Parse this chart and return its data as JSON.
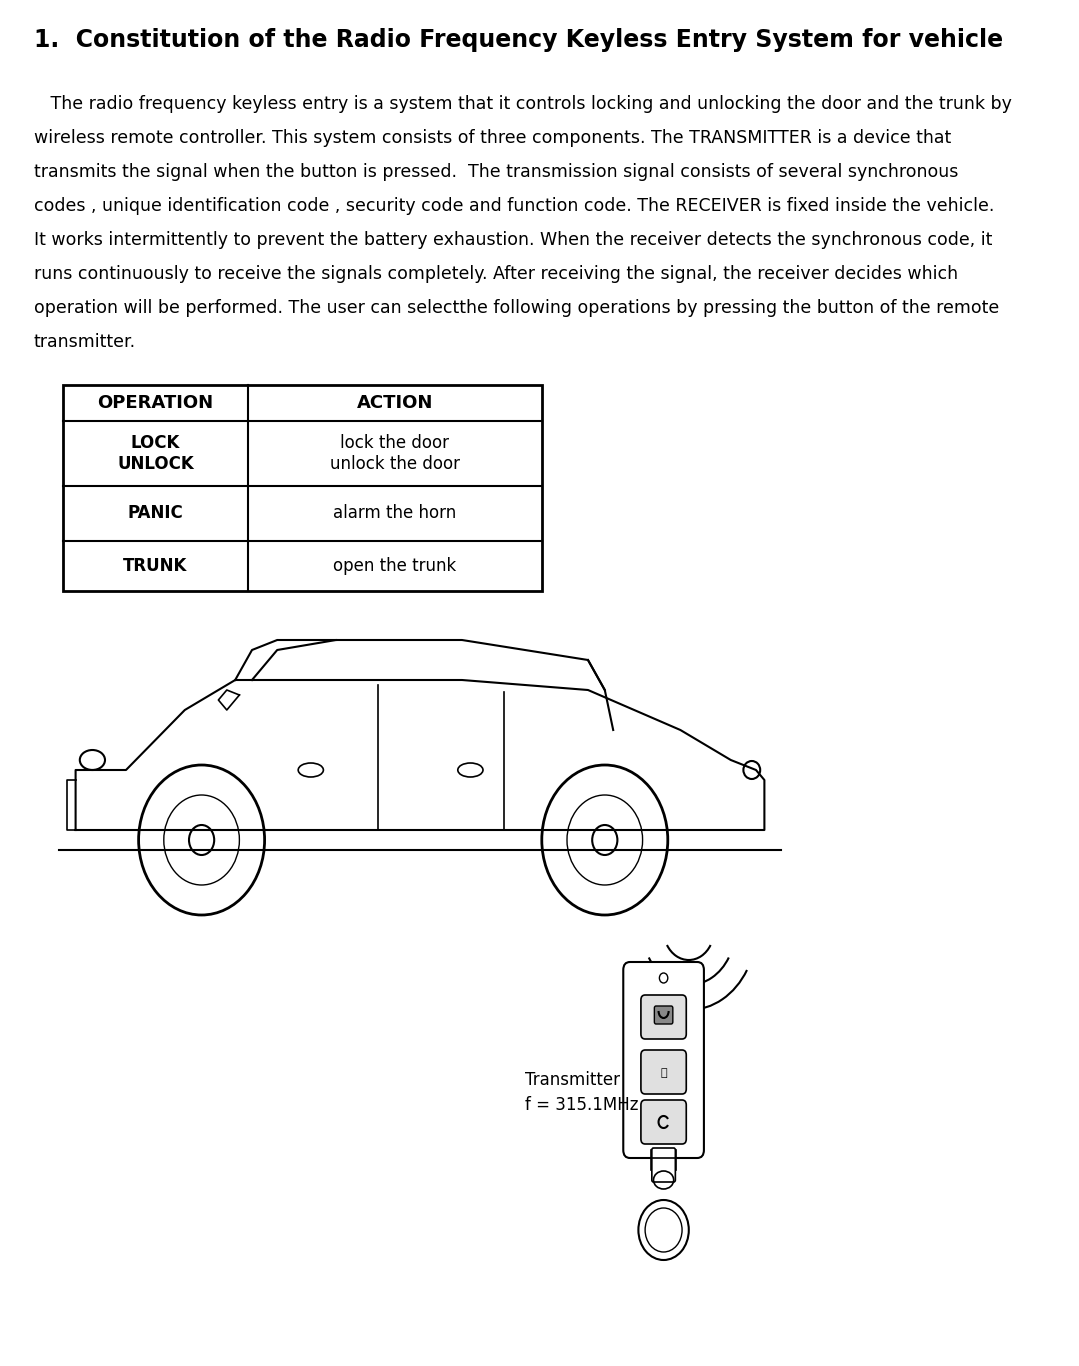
{
  "title": "1.  Constitution of the Radio Frequency Keyless Entry System for vehicle",
  "body_lines": [
    "   The radio frequency keyless entry is a system that it controls locking and unlocking the door and the trunk by",
    "wireless remote controller. This system consists of three components. The TRANSMITTER is a device that",
    "transmits the signal when the button is pressed.  The transmission signal consists of several synchronous",
    "codes , unique identification code , security code and function code. The RECEIVER is fixed inside the vehicle.",
    "It works intermittently to prevent the battery exhaustion. When the receiver detects the synchronous code, it",
    "runs continuously to receive the signals completely. After receiving the signal, the receiver decides which",
    "operation will be performed. The user can selectthe following operations by pressing the button of the remote",
    "transmitter."
  ],
  "table": {
    "headers": [
      "OPERATION",
      "ACTION"
    ],
    "rows": [
      [
        "LOCK\nUNLOCK",
        "lock the door\nunlock the door"
      ],
      [
        "PANIC",
        "alarm the horn"
      ],
      [
        "TRUNK",
        "open the trunk"
      ]
    ]
  },
  "transmitter_label": "Transmitter",
  "freq_label": "f = 315.1MHz",
  "bg_color": "#ffffff",
  "text_color": "#000000",
  "title_fontsize": 17,
  "body_fontsize": 12.5,
  "table_header_fontsize": 13,
  "table_body_fontsize": 12,
  "label_fontsize": 12
}
